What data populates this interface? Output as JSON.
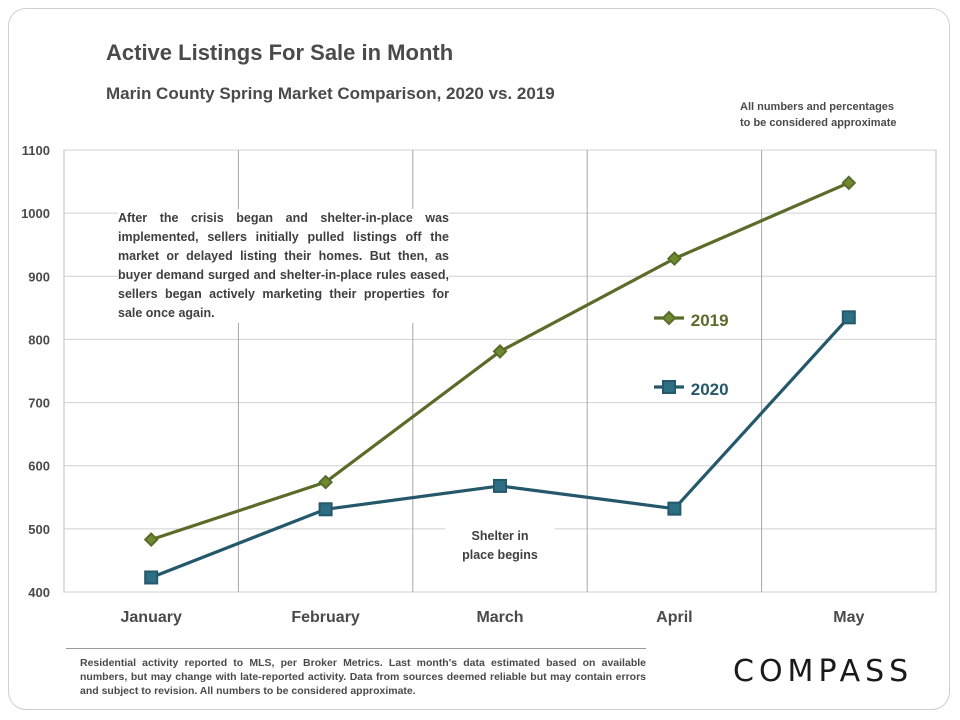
{
  "header": {
    "title": "Active Listings For Sale in Month",
    "subtitle": "Marin County Spring Market Comparison,  2020 vs. 2019",
    "note_line1": "All numbers and percentages",
    "note_line2": "to be considered approximate"
  },
  "annotations": {
    "main": "After the crisis began and shelter-in-place was implemented, sellers initially pulled listings off the market or delayed listing their homes. But then, as buyer demand surged and shelter-in-place rules eased, sellers began actively marketing their properties for sale once again.",
    "shelter_line1": "Shelter in",
    "shelter_line2": "place begins"
  },
  "footer": {
    "text": "Residential activity reported to MLS, per Broker Metrics. Last month's data estimated based on available numbers, but may change with late-reported activity. Data from sources deemed reliable but may contain errors and subject to revision. All numbers to be considered approximate.",
    "logo": "COMPASS"
  },
  "colors": {
    "series_2019": "#5a6b2a",
    "series_2019_fill": "#6e8a2e",
    "series_2020": "#24586a",
    "series_2020_fill": "#2e6e84",
    "grid": "#d0d0d0",
    "axis_text": "#4a4a4a"
  },
  "chart_data": {
    "type": "line",
    "title": "Active Listings For Sale in Month",
    "subtitle": "Marin County Spring Market Comparison,  2020 vs. 2019",
    "categories": [
      "January",
      "February",
      "March",
      "April",
      "May"
    ],
    "ylim": [
      400,
      1100
    ],
    "yticks": [
      "400",
      "500",
      "600",
      "700",
      "800",
      "900",
      "1000",
      "1100"
    ],
    "grid": true,
    "legend_position": "right",
    "series": [
      {
        "name": "2019",
        "marker": "diamond",
        "values": [
          483,
          574,
          781,
          928,
          1048
        ]
      },
      {
        "name": "2020",
        "marker": "square",
        "values": [
          423,
          531,
          568,
          532,
          835
        ]
      }
    ]
  }
}
